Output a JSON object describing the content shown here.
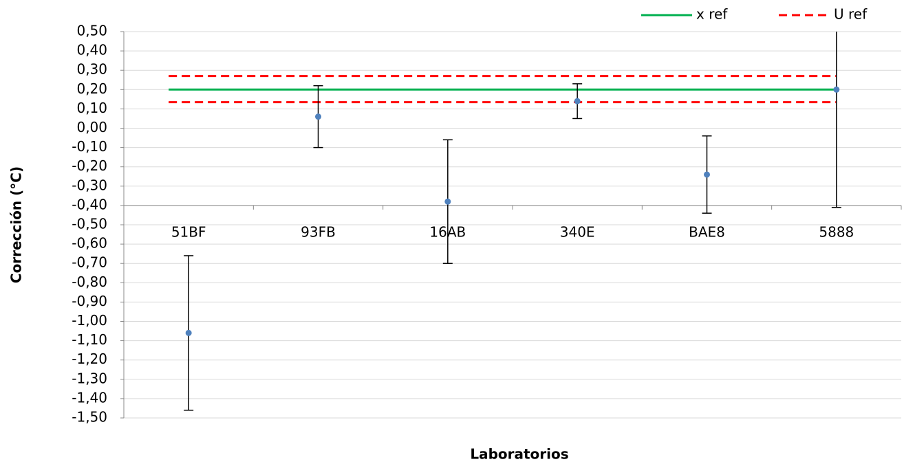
{
  "chart_data": {
    "type": "scatter",
    "x_label": "Laboratorios",
    "y_label": "Corrección (°C)",
    "categories": [
      "51BF",
      "93FB",
      "16AB",
      "340E",
      "BAE8",
      "5888"
    ],
    "series": [
      {
        "color": "#4f81bd",
        "values": [
          -1.06,
          0.06,
          -0.38,
          0.14,
          -0.24,
          0.2
        ],
        "errors": [
          0.4,
          0.16,
          0.32,
          0.09,
          0.2,
          0.61
        ]
      }
    ],
    "reference_lines": [
      {
        "name": "x ref",
        "color": "#00b050",
        "dashed": false,
        "values": [
          0.2
        ]
      },
      {
        "name": "U ref",
        "color": "#ff0000",
        "dashed": true,
        "values": [
          0.27,
          0.135
        ]
      }
    ],
    "xaxis_at": -0.4,
    "ylim": [
      -1.5,
      0.5
    ],
    "yticks": [
      {
        "value": 0.5,
        "label": "0,50"
      },
      {
        "value": 0.4,
        "label": "0,40"
      },
      {
        "value": 0.3,
        "label": "0,30"
      },
      {
        "value": 0.2,
        "label": "0,20"
      },
      {
        "value": 0.1,
        "label": "0,10"
      },
      {
        "value": 0,
        "label": "0,00"
      },
      {
        "value": -0.1,
        "label": "-0,10"
      },
      {
        "value": -0.2,
        "label": "-0,20"
      },
      {
        "value": -0.3,
        "label": "-0,30"
      },
      {
        "value": -0.4,
        "label": "-0,40"
      },
      {
        "value": -0.5,
        "label": "-0,50"
      },
      {
        "value": -0.6,
        "label": "-0,60"
      },
      {
        "value": -0.7,
        "label": "-0,70"
      },
      {
        "value": -0.8,
        "label": "-0,80"
      },
      {
        "value": -0.9,
        "label": "-0,90"
      },
      {
        "value": -1.0,
        "label": "-1,00"
      },
      {
        "value": -1.1,
        "label": "-1,10"
      },
      {
        "value": -1.2,
        "label": "-1,20"
      },
      {
        "value": -1.3,
        "label": "-1,30"
      },
      {
        "value": -1.4,
        "label": "-1,40"
      },
      {
        "value": -1.5,
        "label": "-1,50"
      }
    ],
    "grid": true,
    "legend": "top-right"
  }
}
